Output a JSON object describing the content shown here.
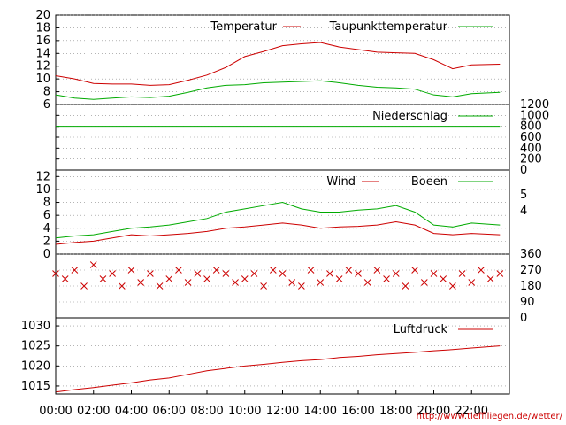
{
  "footer_link": "http://www.tiefflliegen.de/wetter/",
  "colors": {
    "red": "#cc0000",
    "green": "#00aa00",
    "frame": "#000000",
    "grid": "#888888"
  },
  "chart_data": [
    {
      "type": "line",
      "legend_position": "top-right",
      "grid": true,
      "ylim": [
        6,
        20
      ],
      "yticks": [
        "6",
        "8",
        "10",
        "12",
        "14",
        "16",
        "18",
        "20"
      ],
      "series": [
        {
          "name": "Temperatur",
          "color": "#cc0000",
          "x": [
            0,
            1,
            2,
            3,
            4,
            5,
            6,
            7,
            8,
            9,
            10,
            11,
            12,
            13,
            14,
            15,
            16,
            17,
            18,
            19,
            20,
            21,
            22,
            23.5
          ],
          "y": [
            10.5,
            10.0,
            9.3,
            9.2,
            9.2,
            9.0,
            9.1,
            9.8,
            10.6,
            11.8,
            13.5,
            14.3,
            15.2,
            15.5,
            15.7,
            15.0,
            14.6,
            14.2,
            14.1,
            14.0,
            13.0,
            11.6,
            12.2,
            12.3
          ]
        },
        {
          "name": "Taupunkttemperatur",
          "color": "#00aa00",
          "x": [
            0,
            1,
            2,
            3,
            4,
            5,
            6,
            7,
            8,
            9,
            10,
            11,
            12,
            13,
            14,
            15,
            16,
            17,
            18,
            19,
            20,
            21,
            22,
            23.5
          ],
          "y": [
            7.5,
            7.0,
            6.8,
            7.0,
            7.2,
            7.1,
            7.3,
            7.9,
            8.6,
            9.0,
            9.1,
            9.4,
            9.5,
            9.6,
            9.7,
            9.4,
            9.0,
            8.7,
            8.6,
            8.4,
            7.5,
            7.2,
            7.7,
            7.9
          ]
        }
      ]
    },
    {
      "type": "line",
      "legend_position": "top-right",
      "grid": true,
      "ylim": [
        0,
        1200
      ],
      "yticks": [
        "0",
        "200",
        "400",
        "600",
        "800",
        "1000",
        "1200"
      ],
      "series": [
        {
          "name": "Niederschlag",
          "color": "#00aa00",
          "x": [
            0,
            23.5
          ],
          "y": [
            800,
            800
          ]
        }
      ]
    },
    {
      "type": "line",
      "legend_position": "top-right",
      "grid": true,
      "ylim": [
        0,
        13
      ],
      "yticks": [
        "0",
        "2",
        "4",
        "6",
        "8",
        "10",
        "12"
      ],
      "right_ticks": [
        "4",
        "5"
      ],
      "series": [
        {
          "name": "Wind",
          "color": "#cc0000",
          "x": [
            0,
            1,
            2,
            3,
            4,
            5,
            6,
            7,
            8,
            9,
            10,
            11,
            12,
            13,
            14,
            15,
            16,
            17,
            18,
            19,
            20,
            21,
            22,
            23.5
          ],
          "y": [
            1.5,
            1.8,
            2.0,
            2.5,
            3.0,
            2.8,
            3.0,
            3.2,
            3.5,
            4.0,
            4.2,
            4.5,
            4.8,
            4.5,
            4.0,
            4.2,
            4.3,
            4.5,
            5.0,
            4.5,
            3.2,
            3.0,
            3.2,
            3.0
          ]
        },
        {
          "name": "Boeen",
          "color": "#00aa00",
          "x": [
            0,
            1,
            2,
            3,
            4,
            5,
            6,
            7,
            8,
            9,
            10,
            11,
            12,
            13,
            14,
            15,
            16,
            17,
            18,
            19,
            20,
            21,
            22,
            23.5
          ],
          "y": [
            2.5,
            2.8,
            3.0,
            3.5,
            4.0,
            4.2,
            4.5,
            5.0,
            5.5,
            6.5,
            7.0,
            7.5,
            8.0,
            7.0,
            6.5,
            6.5,
            6.8,
            7.0,
            7.5,
            6.5,
            4.5,
            4.2,
            4.8,
            4.5
          ]
        }
      ]
    },
    {
      "type": "scatter",
      "marker": "x",
      "color": "#cc0000",
      "grid": true,
      "ylim": [
        0,
        360
      ],
      "yticks_right": [
        "0",
        "90",
        "180",
        "270",
        "360"
      ],
      "x": [
        0,
        0.5,
        1,
        1.5,
        2,
        2.5,
        3,
        3.5,
        4,
        4.5,
        5,
        5.5,
        6,
        6.5,
        7,
        7.5,
        8,
        8.5,
        9,
        9.5,
        10,
        10.5,
        11,
        11.5,
        12,
        12.5,
        13,
        13.5,
        14,
        14.5,
        15,
        15.5,
        16,
        16.5,
        17,
        17.5,
        18,
        18.5,
        19,
        19.5,
        20,
        20.5,
        21,
        21.5,
        22,
        22.5,
        23,
        23.5
      ],
      "y": [
        250,
        220,
        270,
        180,
        300,
        220,
        250,
        180,
        270,
        200,
        250,
        180,
        220,
        270,
        200,
        250,
        220,
        270,
        250,
        200,
        220,
        250,
        180,
        270,
        250,
        200,
        180,
        270,
        200,
        250,
        220,
        270,
        250,
        200,
        270,
        220,
        250,
        180,
        270,
        200,
        250,
        220,
        180,
        250,
        200,
        270,
        220,
        250
      ]
    },
    {
      "type": "line",
      "legend_position": "top-right",
      "grid": true,
      "ylim": [
        1013,
        1032
      ],
      "yticks": [
        "1015",
        "1020",
        "1025",
        "1030"
      ],
      "x_ticks": [
        "00:00",
        "02:00",
        "04:00",
        "06:00",
        "08:00",
        "10:00",
        "12:00",
        "14:00",
        "16:00",
        "18:00",
        "20:00",
        "22:00"
      ],
      "series": [
        {
          "name": "Luftdruck",
          "color": "#cc0000",
          "x": [
            0,
            1,
            2,
            3,
            4,
            5,
            6,
            7,
            8,
            9,
            10,
            11,
            12,
            13,
            14,
            15,
            16,
            17,
            18,
            19,
            20,
            21,
            22,
            23.5
          ],
          "y": [
            1013.5,
            1014.1,
            1014.6,
            1015.2,
            1015.8,
            1016.5,
            1017.0,
            1017.9,
            1018.8,
            1019.4,
            1020.0,
            1020.4,
            1020.9,
            1021.3,
            1021.6,
            1022.1,
            1022.4,
            1022.8,
            1023.1,
            1023.4,
            1023.8,
            1024.1,
            1024.5,
            1025.0
          ]
        }
      ]
    }
  ]
}
